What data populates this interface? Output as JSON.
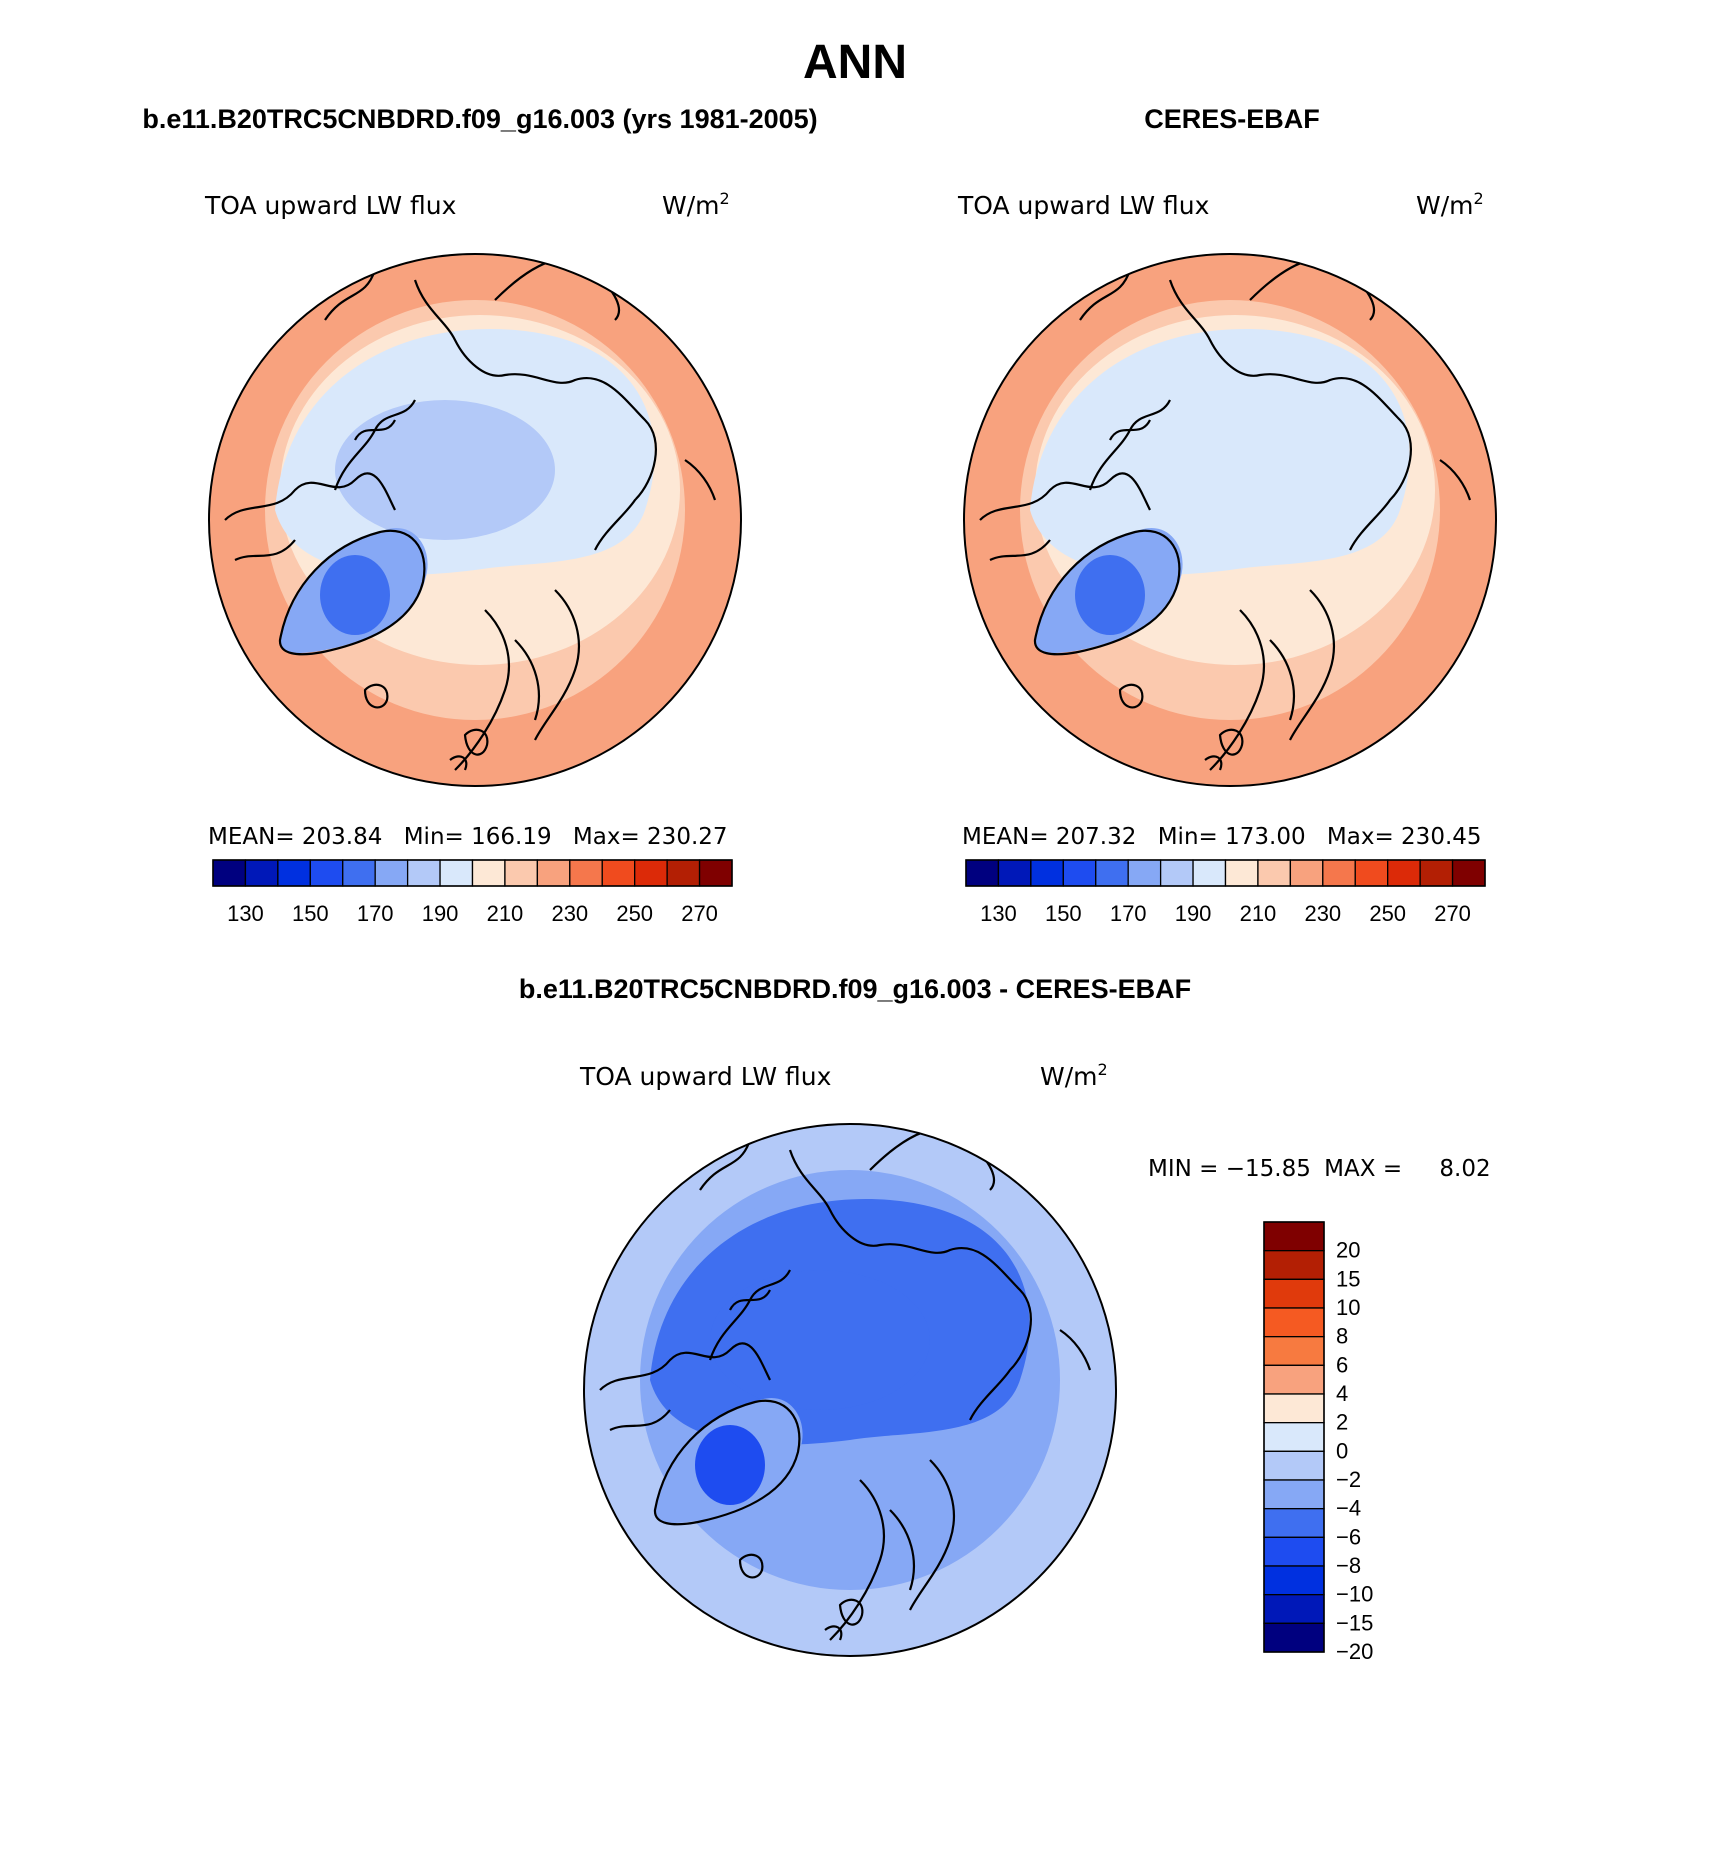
{
  "figure": {
    "title": "ANN",
    "bottom_title": "b.e11.B20TRC5CNBDRD.f09_g16.003 - CERES-EBAF"
  },
  "panels": [
    {
      "id": "model",
      "header": "b.e11.B20TRC5CNBDRD.f09_g16.003 (yrs 1981-2005)",
      "field": "TOA upward LW flux",
      "units_base": "W/m",
      "units_exp": "2",
      "stats": {
        "mean_label": "MEAN=",
        "mean": "203.84",
        "min_label": "Min=",
        "min": "166.19",
        "max_label": "Max=",
        "max": "230.27"
      }
    },
    {
      "id": "obs",
      "header": "CERES-EBAF",
      "field": "TOA upward LW flux",
      "units_base": "W/m",
      "units_exp": "2",
      "stats": {
        "mean_label": "MEAN=",
        "mean": "207.32",
        "min_label": "Min=",
        "min": "173.00",
        "max_label": "Max=",
        "max": "230.45"
      }
    },
    {
      "id": "diff",
      "header": "b.e11.B20TRC5CNBDRD.f09_g16.003 - CERES-EBAF",
      "field": "TOA upward LW flux",
      "units_base": "W/m",
      "units_exp": "2",
      "stats": {
        "min_label": "MIN =",
        "min": "−15.85",
        "max_label": "MAX =",
        "max": "8.02"
      }
    }
  ],
  "abs_colorbar": {
    "colors": [
      "#00007f",
      "#0018b8",
      "#0030e0",
      "#1e4cf0",
      "#3f6ff0",
      "#86a8f5",
      "#b3c9f8",
      "#d9e8fb",
      "#fde8d6",
      "#fbc9ae",
      "#f8a27e",
      "#f5774c",
      "#f04b1e",
      "#dc2a08",
      "#b31f04",
      "#7f0000"
    ],
    "ticks": [
      "130",
      "150",
      "170",
      "190",
      "210",
      "230",
      "250",
      "270"
    ]
  },
  "diff_colorbar": {
    "colors": [
      "#7f0000",
      "#b31f04",
      "#e03a0c",
      "#f55a22",
      "#f77a40",
      "#f8a27e",
      "#fde8d6",
      "#d9e8fb",
      "#b3c9f8",
      "#86a8f5",
      "#3f6ff0",
      "#1e4cf0",
      "#0030e0",
      "#0018b8",
      "#00007f"
    ],
    "labels": [
      "20",
      "15",
      "10",
      "8",
      "6",
      "4",
      "2",
      "0",
      "−2",
      "−4",
      "−6",
      "−8",
      "−10",
      "−15",
      "−20"
    ]
  },
  "map_fill": {
    "model": {
      "outer": "#f8a27e",
      "mid": "#fbc9ae",
      "inner": "#fde8d6",
      "arctic": "#d9e8fb",
      "core": "#b3c9f8",
      "greenland": "#86a8f5",
      "greenland_core": "#3f6ff0"
    },
    "obs": {
      "outer": "#f8a27e",
      "mid": "#fbc9ae",
      "inner": "#fde8d6",
      "arctic": "#d9e8fb",
      "core": "#d9e8fb",
      "greenland": "#86a8f5",
      "greenland_core": "#3f6ff0"
    },
    "diff": {
      "outer": "#b3c9f8",
      "mid": "#86a8f5",
      "inner": "#86a8f5",
      "arctic": "#3f6ff0",
      "core": "#3f6ff0",
      "greenland": "#86a8f5",
      "greenland_core": "#1e4cf0"
    }
  }
}
